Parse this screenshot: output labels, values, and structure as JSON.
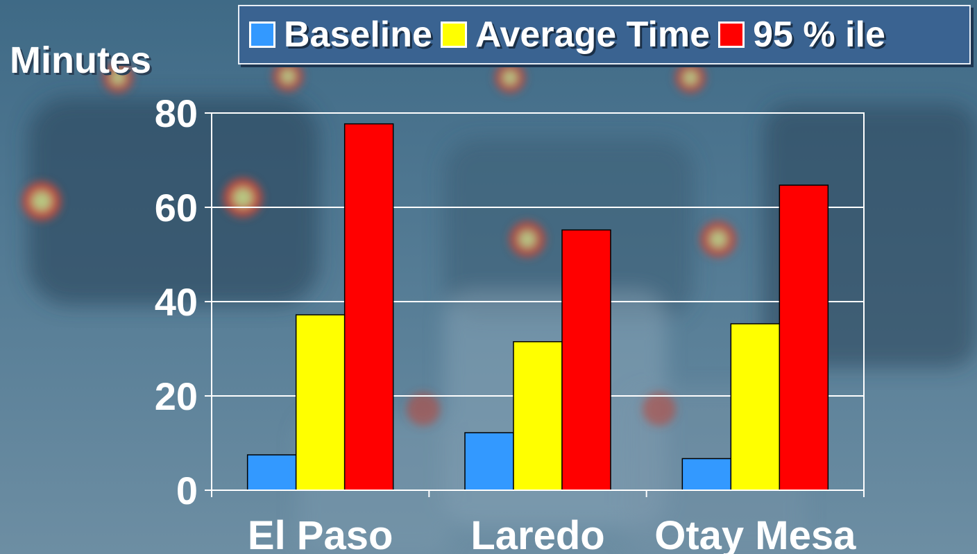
{
  "chart_data": {
    "type": "bar",
    "categories": [
      "El Paso",
      "Laredo",
      "Otay Mesa"
    ],
    "series": [
      {
        "name": "Baseline",
        "values": [
          7.5,
          12.2,
          6.7
        ],
        "color": "#3399ff"
      },
      {
        "name": "Average Time",
        "values": [
          37.2,
          31.5,
          35.3
        ],
        "color": "#ffff00"
      },
      {
        "name": "95 % ile",
        "values": [
          77.7,
          55.2,
          64.7
        ],
        "color": "#ff0000"
      }
    ],
    "title": "",
    "xlabel": "",
    "ylabel": "Minutes",
    "ylim": [
      0,
      80
    ],
    "yticks": [
      "0",
      "20",
      "40",
      "60",
      "80"
    ],
    "grid": true,
    "legend_position": "top"
  },
  "colors": {
    "background_photo": "#4d7590",
    "legend_background": "#3a6391",
    "gridline": "#ffffff"
  }
}
